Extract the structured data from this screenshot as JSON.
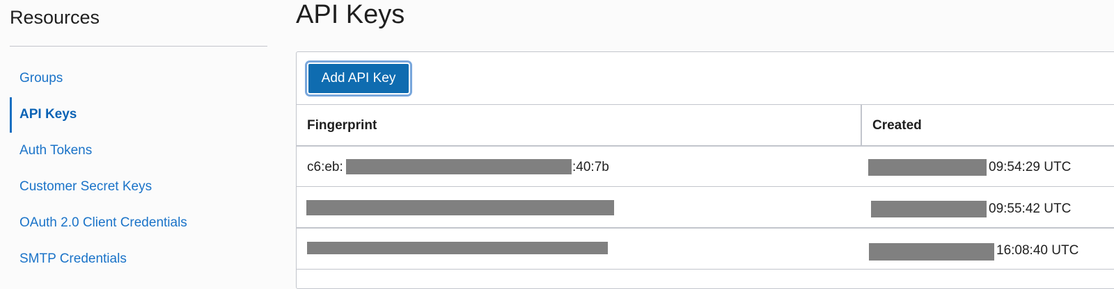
{
  "sidebar": {
    "title": "Resources",
    "items": [
      {
        "label": "Groups",
        "active": false
      },
      {
        "label": "API Keys",
        "active": true
      },
      {
        "label": "Auth Tokens",
        "active": false
      },
      {
        "label": "Customer Secret Keys",
        "active": false
      },
      {
        "label": "OAuth 2.0 Client Credentials",
        "active": false
      },
      {
        "label": "SMTP Credentials",
        "active": false
      }
    ]
  },
  "main": {
    "title": "API Keys",
    "add_button": "Add API Key",
    "columns": [
      "Fingerprint",
      "Created"
    ],
    "rows": [
      {
        "fingerprint_prefix": "c6:eb:",
        "fingerprint_suffix": ":40:7b",
        "created": "09:54:29 UTC"
      },
      {
        "fingerprint_prefix": "",
        "fingerprint_suffix": "",
        "created": "09:55:42 UTC"
      },
      {
        "fingerprint_prefix": "",
        "fingerprint_suffix": "",
        "created": "16:08:40 UTC"
      }
    ]
  },
  "colors": {
    "link": "#1a73c8",
    "button": "#0f6cb0",
    "redaction": "#808080"
  }
}
